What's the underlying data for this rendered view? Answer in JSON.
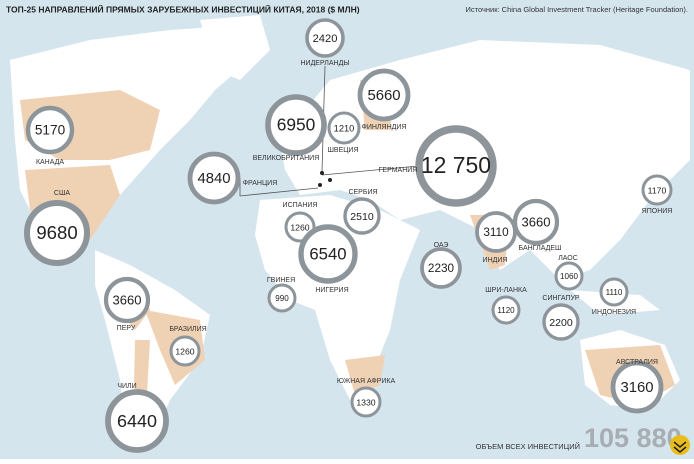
{
  "header": {
    "title": "ТОП-25 НАПРАВЛЕНИЙ ПРЯМЫХ ЗАРУБЕЖНЫХ ИНВЕСТИЦИЙ КИТАЯ, 2018 ($ МЛН)",
    "source": "Источник: China Global Investment Tracker (Heritage Foundation)."
  },
  "countries": [
    {
      "name": "КАНАДА",
      "value": 5170
    },
    {
      "name": "США",
      "value": 9680
    },
    {
      "name": "НИДЕРЛАНДЫ",
      "value": 2420
    },
    {
      "name": "ВЕЛИКОБРИТАНИЯ",
      "value": 6950
    },
    {
      "name": "ФИНЛЯНДИЯ",
      "value": 5660
    },
    {
      "name": "ШВЕЦИЯ",
      "value": 1210
    },
    {
      "name": "ГЕРМАНИЯ",
      "value": 12750,
      "label": "12 750"
    },
    {
      "name": "ФРАНЦИЯ",
      "value": 4840
    },
    {
      "name": "СЕРБИЯ",
      "value": 2510
    },
    {
      "name": "ИСПАНИЯ",
      "value": 1260
    },
    {
      "name": "ЯПОНИЯ",
      "value": 1170
    },
    {
      "name": "БАНГЛАДЕШ",
      "value": 3660
    },
    {
      "name": "ИНДИЯ",
      "value": 3110
    },
    {
      "name": "НИГЕРИЯ",
      "value": 6540
    },
    {
      "name": "ОАЭ",
      "value": 2230
    },
    {
      "name": "ЛАОС",
      "value": 1060
    },
    {
      "name": "ГВИНЕЯ",
      "value": 990
    },
    {
      "name": "ПЕРУ",
      "value": 3660
    },
    {
      "name": "ШРИ-ЛАНКА",
      "value": 1120
    },
    {
      "name": "ИНДОНЕЗИЯ",
      "value": 1110
    },
    {
      "name": "СИНГАПУР",
      "value": 2200
    },
    {
      "name": "БРАЗИЛИЯ",
      "value": 1260
    },
    {
      "name": "АВСТРАЛИЯ",
      "value": 3160
    },
    {
      "name": "ЧИЛИ",
      "value": 6440
    },
    {
      "name": "ЮЖНАЯ АФРИКА",
      "value": 1330
    }
  ],
  "total": {
    "label": "ОБЪЕМ ВСЕХ ИНВЕСТИЦИЙ",
    "value": 105880,
    "value_label": "105 880"
  }
}
